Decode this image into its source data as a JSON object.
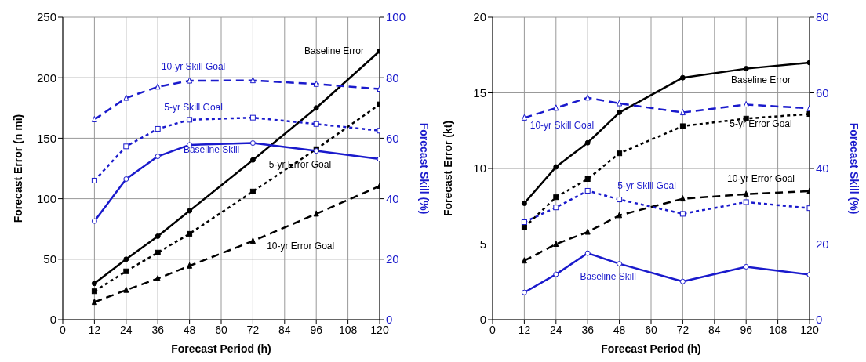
{
  "chart_data": [
    {
      "type": "line",
      "xlabel": "Forecast Period (h)",
      "ylabel": "Forecast Error (n mi)",
      "y2label": "Forecast Skill (%)",
      "x": [
        12,
        24,
        36,
        48,
        72,
        96,
        120
      ],
      "xlim": [
        0,
        120
      ],
      "xticks": [
        0,
        12,
        24,
        36,
        48,
        60,
        72,
        84,
        96,
        108,
        120
      ],
      "ylim": [
        0,
        250
      ],
      "yticks": [
        0,
        50,
        100,
        150,
        200,
        250
      ],
      "y2lim": [
        0,
        100
      ],
      "y2ticks": [
        0,
        20,
        40,
        60,
        80,
        100
      ],
      "grid": true,
      "legend": false,
      "series": [
        {
          "name": "Baseline Error",
          "color": "#000000",
          "line_style": "solid",
          "marker": "circle",
          "values": [
            30,
            50,
            69,
            90,
            132,
            175,
            222
          ]
        },
        {
          "name": "5-yr Error Goal",
          "color": "#000000",
          "line_style": "dotted",
          "marker": "square",
          "values": [
            23.5,
            40,
            55.5,
            71,
            106,
            141,
            178
          ]
        },
        {
          "name": "10-yr Error Goal",
          "color": "#000000",
          "line_style": "dashed",
          "marker": "triangle",
          "values": [
            14.5,
            24.5,
            34,
            44.5,
            65,
            87.5,
            110.5
          ]
        },
        {
          "name": "Baseline Skill",
          "color": "#1a1acc",
          "axis": "y2",
          "line_style": "solid",
          "marker": "circle",
          "values": [
            32.6,
            46.5,
            54,
            57.8,
            58.4,
            55.8,
            53.1
          ]
        },
        {
          "name": "5-yr Skill Goal",
          "color": "#1a1acc",
          "axis": "y2",
          "line_style": "dotted",
          "marker": "square",
          "values": [
            46,
            57.3,
            63.1,
            66.1,
            66.8,
            64.7,
            62.5
          ]
        },
        {
          "name": "10-yr Skill Goal",
          "color": "#1a1acc",
          "axis": "y2",
          "line_style": "dashed",
          "marker": "triangle",
          "values": [
            66.2,
            73.3,
            77,
            79,
            79.1,
            77.9,
            76.3
          ]
        }
      ]
    },
    {
      "type": "line",
      "xlabel": "Forecast Period (h)",
      "ylabel": "Forecast Error (kt)",
      "y2label": "Forecast Skill (%)",
      "x": [
        12,
        24,
        36,
        48,
        72,
        96,
        120
      ],
      "xlim": [
        0,
        120
      ],
      "xticks": [
        0,
        12,
        24,
        36,
        48,
        60,
        72,
        84,
        96,
        108,
        120
      ],
      "ylim": [
        0,
        20
      ],
      "yticks": [
        0,
        5,
        10,
        15,
        20
      ],
      "y2lim": [
        0,
        80
      ],
      "y2ticks": [
        0,
        20,
        40,
        60,
        80
      ],
      "grid": true,
      "legend": false,
      "series": [
        {
          "name": "Baseline Error",
          "color": "#000000",
          "line_style": "solid",
          "marker": "circle",
          "values": [
            7.7,
            10.1,
            11.7,
            13.7,
            16.0,
            16.6,
            17.0
          ]
        },
        {
          "name": "5-yr Error Goal",
          "color": "#000000",
          "line_style": "dotted",
          "marker": "square",
          "values": [
            6.1,
            8.1,
            9.3,
            11.0,
            12.8,
            13.3,
            13.6
          ]
        },
        {
          "name": "10-yr Error Goal",
          "color": "#000000",
          "line_style": "dashed",
          "marker": "triangle",
          "values": [
            3.9,
            5.0,
            5.8,
            6.9,
            8.0,
            8.3,
            8.5
          ]
        },
        {
          "name": "Baseline Skill",
          "color": "#1a1acc",
          "axis": "y2",
          "line_style": "solid",
          "marker": "circle",
          "values": [
            7.2,
            12,
            17.6,
            14.8,
            10.1,
            14,
            11.9
          ]
        },
        {
          "name": "5-yr Skill Goal",
          "color": "#1a1acc",
          "axis": "y2",
          "line_style": "dotted",
          "marker": "square",
          "values": [
            25.8,
            29.7,
            34.1,
            31.8,
            28,
            31.1,
            29.5
          ]
        },
        {
          "name": "10-yr Skill Goal",
          "color": "#1a1acc",
          "axis": "y2",
          "line_style": "dashed",
          "marker": "triangle",
          "values": [
            53.4,
            56,
            58.7,
            57.2,
            54.8,
            56.9,
            55.9
          ]
        }
      ]
    }
  ]
}
